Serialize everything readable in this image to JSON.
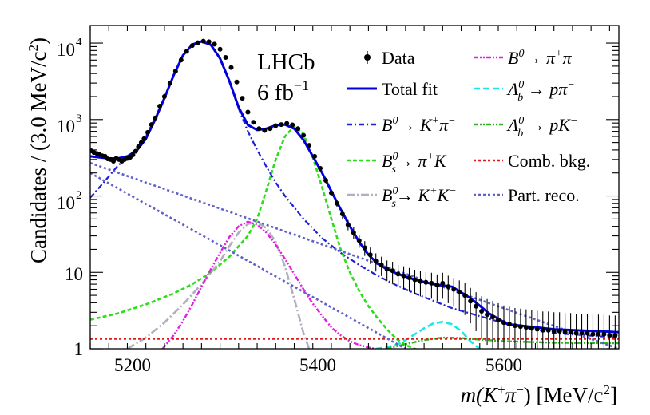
{
  "chart_data": {
    "type": "line",
    "scale_y": "log",
    "xlim": [
      5150,
      5720
    ],
    "ylim": [
      1,
      17000
    ],
    "xlabel_main": "m(K",
    "xlabel_sup1": "+",
    "xlabel_mid": "π",
    "xlabel_sup2": "−",
    "xlabel_tail": ") [MeV/c",
    "xlabel_sup3": "2",
    "xlabel_end": "]",
    "ylabel_main": "Candidates / (3.0 MeV/c",
    "ylabel_sup": "2",
    "ylabel_end": ")",
    "x_ticks": [
      {
        "value": 5200,
        "label": "5200"
      },
      {
        "value": 5400,
        "label": "5400"
      },
      {
        "value": 5600,
        "label": "5600"
      }
    ],
    "y_ticks": [
      {
        "value": 1,
        "label": "1"
      },
      {
        "value": 10,
        "label": "10"
      },
      {
        "value": 100,
        "label": "10",
        "exp": "2"
      },
      {
        "value": 1000,
        "label": "10",
        "exp": "3"
      },
      {
        "value": 10000,
        "label": "10",
        "exp": "4"
      }
    ],
    "annotation": {
      "experiment": "LHCb",
      "lumi": "6 fb",
      "lumi_exp": "−1"
    },
    "legend": [
      {
        "key": "data",
        "label": "Data",
        "color": "#000000",
        "style": "marker"
      },
      {
        "key": "total",
        "label": "Total fit",
        "color": "#0000dd",
        "style": "solid"
      },
      {
        "key": "bkpi",
        "label": "B⁰→ K⁺π⁻",
        "color": "#1f1fd6",
        "style": "dashdot"
      },
      {
        "key": "bspik",
        "label": "B⁰ₛ→ π⁺K⁻",
        "color": "#2bdd1a",
        "style": "dashed"
      },
      {
        "key": "bskk",
        "label": "B⁰ₛ→ K⁺K⁻",
        "color": "#b0b0bc",
        "style": "longdashdot"
      },
      {
        "key": "bpipi",
        "label": "B⁰→ π⁺π⁻",
        "color": "#e020e0",
        "style": "dashdotdot"
      },
      {
        "key": "lbppi",
        "label": "Λ⁰_b → pπ⁻",
        "color": "#18e8e8",
        "style": "dashed"
      },
      {
        "key": "lbpk",
        "label": "Λ⁰_b → pK⁻",
        "color": "#2fb31f",
        "style": "dashdotdot"
      },
      {
        "key": "comb",
        "label": "Comb. bkg.",
        "color": "#e01818",
        "style": "dotted"
      },
      {
        "key": "partreco",
        "label": "Part. reco.",
        "color": "#6060cc",
        "style": "dotted"
      }
    ],
    "series": [
      {
        "name": "Total fit",
        "key": "total",
        "x": [
          5150,
          5160,
          5170,
          5180,
          5190,
          5200,
          5210,
          5220,
          5230,
          5240,
          5250,
          5260,
          5270,
          5280,
          5290,
          5300,
          5310,
          5320,
          5330,
          5340,
          5350,
          5360,
          5370,
          5380,
          5390,
          5400,
          5410,
          5420,
          5430,
          5440,
          5450,
          5460,
          5470,
          5480,
          5490,
          5500,
          5520,
          5540,
          5560,
          5580,
          5600,
          5650,
          5720
        ],
        "y": [
          330,
          320,
          310,
          310,
          330,
          390,
          560,
          1000,
          1900,
          3800,
          6900,
          9600,
          10500,
          9500,
          6300,
          3200,
          1450,
          850,
          730,
          760,
          840,
          860,
          760,
          540,
          330,
          200,
          115,
          67,
          40,
          25,
          17,
          13,
          11,
          9.7,
          8.8,
          8.0,
          7.0,
          6.5,
          4.6,
          2.9,
          2.1,
          1.8,
          1.65
        ]
      },
      {
        "name": "B0 to K+pi-",
        "key": "bkpi",
        "x": [
          5150,
          5160,
          5170,
          5180,
          5190,
          5200,
          5210,
          5220,
          5230,
          5240,
          5250,
          5260,
          5270,
          5280,
          5290,
          5300,
          5310,
          5320,
          5330,
          5340,
          5350,
          5360,
          5380,
          5400,
          5420,
          5440,
          5460,
          5480,
          5500,
          5540,
          5600,
          5650,
          5720
        ],
        "y": [
          95,
          130,
          180,
          250,
          320,
          420,
          600,
          1050,
          1950,
          3800,
          6900,
          9600,
          10500,
          9500,
          6300,
          3200,
          1400,
          700,
          400,
          240,
          150,
          100,
          50,
          28,
          18,
          12.5,
          9,
          6.8,
          5.3,
          3.4,
          2.1,
          1.6,
          1.4
        ]
      },
      {
        "name": "Bs to pi+K-",
        "key": "bspik",
        "x": [
          5150,
          5180,
          5210,
          5240,
          5260,
          5280,
          5300,
          5320,
          5330,
          5340,
          5350,
          5360,
          5370,
          5380,
          5390,
          5400,
          5410,
          5420,
          5430,
          5440,
          5450,
          5460,
          5470,
          5480,
          5490,
          5500,
          5510
        ],
        "y": [
          2.4,
          2.9,
          3.8,
          5.3,
          7,
          10,
          16,
          30,
          50,
          120,
          300,
          600,
          820,
          640,
          320,
          130,
          50,
          20,
          10,
          5.7,
          3.6,
          2.5,
          1.8,
          1.35,
          1.12,
          1.0,
          0.9
        ]
      },
      {
        "name": "Bs to K+K-",
        "key": "bskk",
        "x": [
          5190,
          5210,
          5230,
          5250,
          5270,
          5290,
          5300,
          5310,
          5320,
          5330,
          5340,
          5350,
          5360,
          5370,
          5380,
          5386
        ],
        "y": [
          1.0,
          1.4,
          2.2,
          3.8,
          7,
          14,
          22,
          33,
          43,
          45,
          38,
          25,
          12,
          4.5,
          1.6,
          1.0
        ]
      },
      {
        "name": "B0 to pi+pi-",
        "key": "bpipi",
        "x": [
          5228,
          5240,
          5250,
          5260,
          5270,
          5280,
          5290,
          5300,
          5310,
          5320,
          5330,
          5340,
          5350,
          5360,
          5370,
          5380,
          5390,
          5400,
          5410,
          5420,
          5430,
          5440,
          5450,
          5457
        ],
        "y": [
          1.0,
          1.5,
          2.3,
          3.8,
          6.5,
          11,
          18,
          29,
          40,
          46,
          42,
          33,
          23,
          15,
          9.5,
          6.0,
          3.9,
          2.7,
          1.9,
          1.5,
          1.25,
          1.12,
          1.04,
          1.0
        ]
      },
      {
        "name": "Lb to p pi-",
        "key": "lbppi",
        "x": [
          5458,
          5470,
          5480,
          5490,
          5500,
          5510,
          5520,
          5530,
          5540,
          5550,
          5560,
          5570
        ],
        "y": [
          1.0,
          1.05,
          1.12,
          1.3,
          1.55,
          1.85,
          2.15,
          2.25,
          2.1,
          1.7,
          1.25,
          1.0
        ]
      },
      {
        "name": "Lb to p K-",
        "key": "lbpk",
        "x": [
          5470,
          5490,
          5510,
          5530,
          5550,
          5570,
          5600,
          5650,
          5720
        ],
        "y": [
          1.0,
          1.15,
          1.3,
          1.4,
          1.38,
          1.32,
          1.25,
          1.2,
          1.18
        ]
      },
      {
        "name": "Comb. bkg.",
        "key": "comb",
        "x": [
          5150,
          5720
        ],
        "y": [
          1.35,
          1.35
        ]
      },
      {
        "name": "Part. reco. (upper)",
        "key": "partreco",
        "x": [
          5150,
          5720
        ],
        "y": [
          270,
          1.0
        ]
      },
      {
        "name": "Part. reco. (lower)",
        "key": "partreco",
        "x": [
          5150,
          5490
        ],
        "y": [
          200,
          1.0
        ]
      }
    ],
    "data_points": [
      [
        5151,
        390
      ],
      [
        5154,
        370
      ],
      [
        5157,
        360
      ],
      [
        5160,
        350
      ],
      [
        5163,
        335
      ],
      [
        5166,
        330
      ],
      [
        5169,
        305
      ],
      [
        5172,
        300
      ],
      [
        5175,
        285
      ],
      [
        5178,
        310
      ],
      [
        5181,
        300
      ],
      [
        5184,
        285
      ],
      [
        5187,
        300
      ],
      [
        5190,
        310
      ],
      [
        5193,
        320
      ],
      [
        5196,
        345
      ],
      [
        5199,
        385
      ],
      [
        5202,
        440
      ],
      [
        5205,
        500
      ],
      [
        5208,
        560
      ],
      [
        5212,
        680
      ],
      [
        5216,
        860
      ],
      [
        5220,
        1050
      ],
      [
        5225,
        1500
      ],
      [
        5230,
        2000
      ],
      [
        5236,
        3000
      ],
      [
        5242,
        4300
      ],
      [
        5248,
        6000
      ],
      [
        5254,
        7800
      ],
      [
        5260,
        9300
      ],
      [
        5266,
        10100
      ],
      [
        5272,
        10600
      ],
      [
        5278,
        10400
      ],
      [
        5284,
        9700
      ],
      [
        5290,
        8300
      ],
      [
        5296,
        6500
      ],
      [
        5302,
        4800
      ],
      [
        5308,
        3100
      ],
      [
        5314,
        1900
      ],
      [
        5320,
        1250
      ],
      [
        5326,
        920
      ],
      [
        5332,
        760
      ],
      [
        5338,
        720
      ],
      [
        5344,
        760
      ],
      [
        5350,
        830
      ],
      [
        5356,
        860
      ],
      [
        5362,
        890
      ],
      [
        5368,
        850
      ],
      [
        5374,
        760
      ],
      [
        5380,
        620
      ],
      [
        5386,
        460
      ],
      [
        5392,
        330
      ],
      [
        5398,
        230
      ],
      [
        5404,
        160
      ],
      [
        5410,
        110
      ],
      [
        5416,
        80
      ],
      [
        5422,
        58
      ],
      [
        5428,
        42
      ],
      [
        5434,
        33
      ],
      [
        5440,
        26
      ],
      [
        5446,
        21
      ],
      [
        5452,
        17
      ],
      [
        5458,
        14
      ],
      [
        5464,
        12.5
      ],
      [
        5470,
        11
      ],
      [
        5476,
        10.5
      ],
      [
        5482,
        9.5
      ],
      [
        5488,
        9
      ],
      [
        5494,
        8.5
      ],
      [
        5500,
        8
      ],
      [
        5506,
        7.6
      ],
      [
        5512,
        7.4
      ],
      [
        5518,
        7.2
      ],
      [
        5524,
        6.8
      ],
      [
        5530,
        7.2
      ],
      [
        5536,
        6.5
      ],
      [
        5542,
        6
      ],
      [
        5548,
        5.5
      ],
      [
        5554,
        5
      ],
      [
        5560,
        4.2
      ],
      [
        5566,
        3.6
      ],
      [
        5572,
        3.1
      ],
      [
        5578,
        2.8
      ],
      [
        5584,
        2.6
      ],
      [
        5590,
        2.4
      ],
      [
        5596,
        2.2
      ],
      [
        5602,
        2.1
      ],
      [
        5608,
        2.0
      ],
      [
        5614,
        1.95
      ],
      [
        5620,
        1.9
      ],
      [
        5626,
        1.85
      ],
      [
        5632,
        1.8
      ],
      [
        5638,
        1.75
      ],
      [
        5644,
        1.75
      ],
      [
        5650,
        1.7
      ],
      [
        5656,
        1.7
      ],
      [
        5662,
        1.65
      ],
      [
        5668,
        1.65
      ],
      [
        5674,
        1.6
      ],
      [
        5680,
        1.6
      ],
      [
        5686,
        1.6
      ],
      [
        5692,
        1.55
      ],
      [
        5698,
        1.55
      ],
      [
        5704,
        1.55
      ],
      [
        5710,
        1.5
      ],
      [
        5716,
        1.5
      ]
    ]
  }
}
